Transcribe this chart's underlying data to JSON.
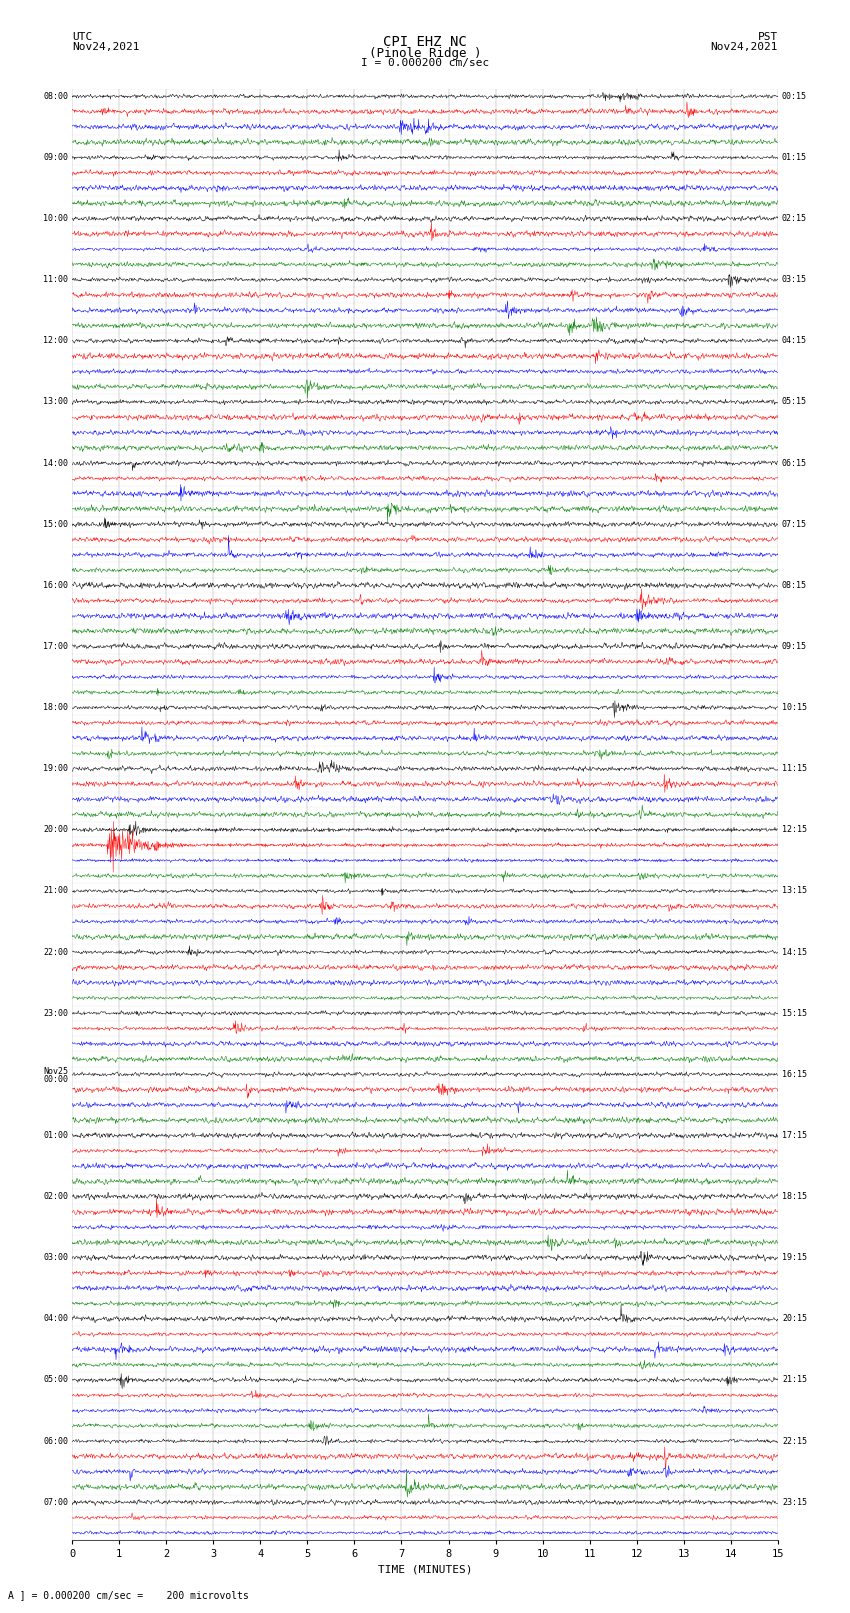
{
  "title_line1": "CPI EHZ NC",
  "title_line2": "(Pinole Ridge )",
  "scale_label": "I = 0.000200 cm/sec",
  "utc_label": "UTC\nNov24,2021",
  "pst_label": "PST\nNov24,2021",
  "bottom_label": "A ] = 0.000200 cm/sec =    200 microvolts",
  "xlabel": "TIME (MINUTES)",
  "left_times": [
    "08:00",
    "",
    "",
    "",
    "09:00",
    "",
    "",
    "",
    "10:00",
    "",
    "",
    "",
    "11:00",
    "",
    "",
    "",
    "12:00",
    "",
    "",
    "",
    "13:00",
    "",
    "",
    "",
    "14:00",
    "",
    "",
    "",
    "15:00",
    "",
    "",
    "",
    "16:00",
    "",
    "",
    "",
    "17:00",
    "",
    "",
    "",
    "18:00",
    "",
    "",
    "",
    "19:00",
    "",
    "",
    "",
    "20:00",
    "",
    "",
    "",
    "21:00",
    "",
    "",
    "",
    "22:00",
    "",
    "",
    "",
    "23:00",
    "",
    "",
    "",
    "Nov25\n00:00",
    "",
    "",
    "",
    "01:00",
    "",
    "",
    "",
    "02:00",
    "",
    "",
    "",
    "03:00",
    "",
    "",
    "",
    "04:00",
    "",
    "",
    "",
    "05:00",
    "",
    "",
    "",
    "06:00",
    "",
    "",
    "",
    "07:00",
    "",
    ""
  ],
  "right_times": [
    "00:15",
    "",
    "",
    "",
    "01:15",
    "",
    "",
    "",
    "02:15",
    "",
    "",
    "",
    "03:15",
    "",
    "",
    "",
    "04:15",
    "",
    "",
    "",
    "05:15",
    "",
    "",
    "",
    "06:15",
    "",
    "",
    "",
    "07:15",
    "",
    "",
    "",
    "08:15",
    "",
    "",
    "",
    "09:15",
    "",
    "",
    "",
    "10:15",
    "",
    "",
    "",
    "11:15",
    "",
    "",
    "",
    "12:15",
    "",
    "",
    "",
    "13:15",
    "",
    "",
    "",
    "14:15",
    "",
    "",
    "",
    "15:15",
    "",
    "",
    "",
    "16:15",
    "",
    "",
    "",
    "17:15",
    "",
    "",
    "",
    "18:15",
    "",
    "",
    "",
    "19:15",
    "",
    "",
    "",
    "20:15",
    "",
    "",
    "",
    "21:15",
    "",
    "",
    "",
    "22:15",
    "",
    "",
    "",
    "23:15",
    "",
    ""
  ],
  "colors": [
    "black",
    "red",
    "blue",
    "green"
  ],
  "n_rows": 95,
  "n_minutes": 15,
  "background_color": "white",
  "figsize": [
    8.5,
    16.13
  ],
  "dpi": 100
}
